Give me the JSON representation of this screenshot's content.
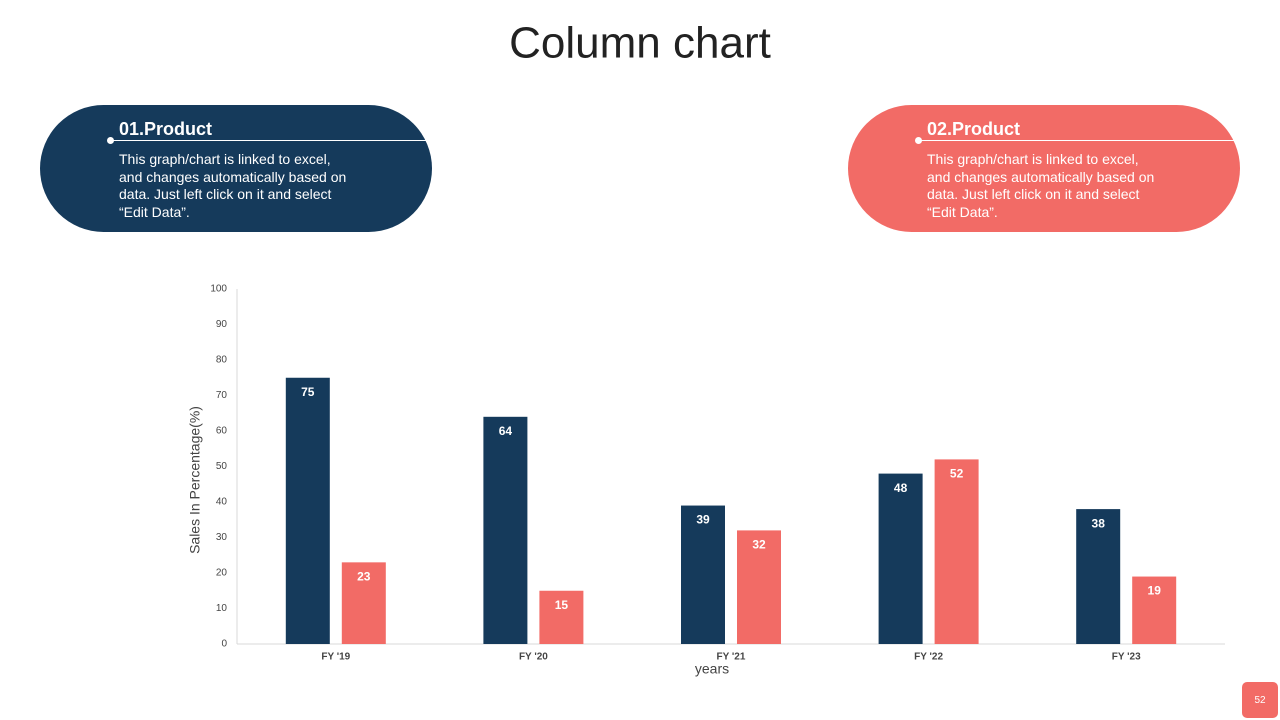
{
  "chart_data": {
    "type": "bar",
    "title": "Column chart",
    "categories": [
      "FY '19",
      "FY '20",
      "FY '21",
      "FY '22",
      "FY '23"
    ],
    "series": [
      {
        "name": "01.Product",
        "color": "#153a5b",
        "values": [
          75,
          64,
          39,
          48,
          38
        ]
      },
      {
        "name": "02.Product",
        "color": "#f26b66",
        "values": [
          23,
          15,
          32,
          52,
          19
        ]
      }
    ],
    "ylim": [
      0,
      100
    ],
    "yticks": [
      0,
      10,
      20,
      30,
      40,
      50,
      60,
      70,
      80,
      90,
      100
    ],
    "y_label": "Sales In Percentage(%)",
    "x_label": "years",
    "grid": false
  },
  "cards": [
    {
      "text": "This graph/chart is linked to excel, and changes automatically based on data. Just left click on it and select “Edit Data”."
    },
    {
      "text": "This graph/chart is linked to excel, and changes automatically based on data. Just left click on it and select “Edit Data”."
    }
  ],
  "page_number": "52"
}
